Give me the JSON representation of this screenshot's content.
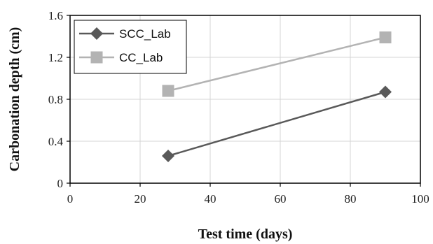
{
  "chart_data": {
    "type": "line",
    "title": "",
    "xlabel": "Test time (days)",
    "ylabel": "Carbonation depth (cm)",
    "xlim": [
      0,
      100
    ],
    "ylim": [
      0,
      1.6
    ],
    "x_ticks": [
      "0",
      "20",
      "40",
      "60",
      "80",
      "100"
    ],
    "y_ticks": [
      "0",
      "0.4",
      "0.8",
      "1.2",
      "1.6"
    ],
    "grid": true,
    "legend_position": "top-left",
    "series": [
      {
        "name": "SCC_Lab",
        "marker": "diamond",
        "color": "#595959",
        "x": [
          28,
          90
        ],
        "y": [
          0.26,
          0.87
        ]
      },
      {
        "name": "CC_Lab",
        "marker": "square",
        "color": "#b3b3b3",
        "x": [
          28,
          90
        ],
        "y": [
          0.88,
          1.39
        ]
      }
    ]
  }
}
